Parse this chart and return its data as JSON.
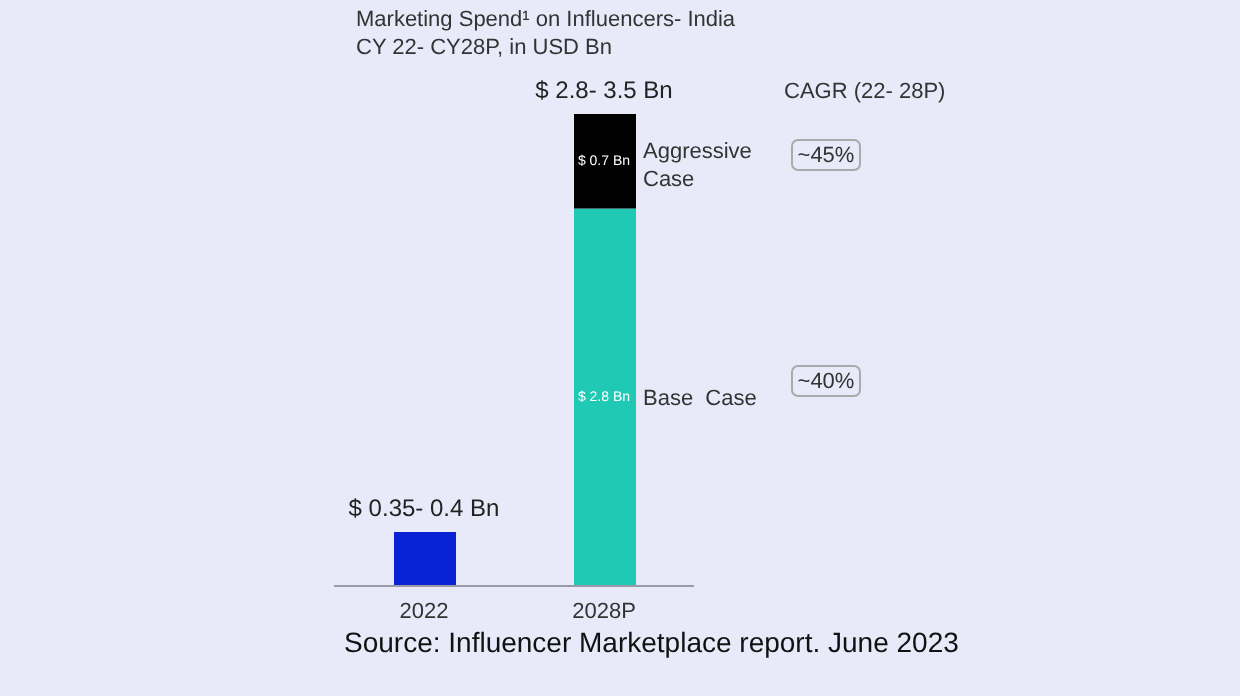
{
  "chart_data": {
    "type": "bar",
    "stacked": true,
    "title": "Marketing Spend¹ on Influencers- India",
    "subtitle": "CY 22- CY28P, in USD Bn",
    "categories": [
      "2022",
      "2028P"
    ],
    "series": [
      {
        "name": "Base  Case",
        "colors": [
          "#0a22d6",
          "#20c9b4"
        ],
        "values": [
          0.4,
          2.8
        ],
        "value_labels": [
          null,
          "$ 2.8 Bn"
        ]
      },
      {
        "name": "Aggressive Case",
        "color": "#000000",
        "values": [
          null,
          0.7
        ],
        "value_labels": [
          null,
          "$ 0.7 Bn"
        ]
      }
    ],
    "totals": [
      "$ 0.35- 0.4 Bn",
      "$ 2.8- 3.5 Bn"
    ],
    "annotations": [
      "CAGR (22- 28P)",
      "~45%",
      "~40%",
      "Source: Influencer Marketplace report. June 2023"
    ]
  }
}
